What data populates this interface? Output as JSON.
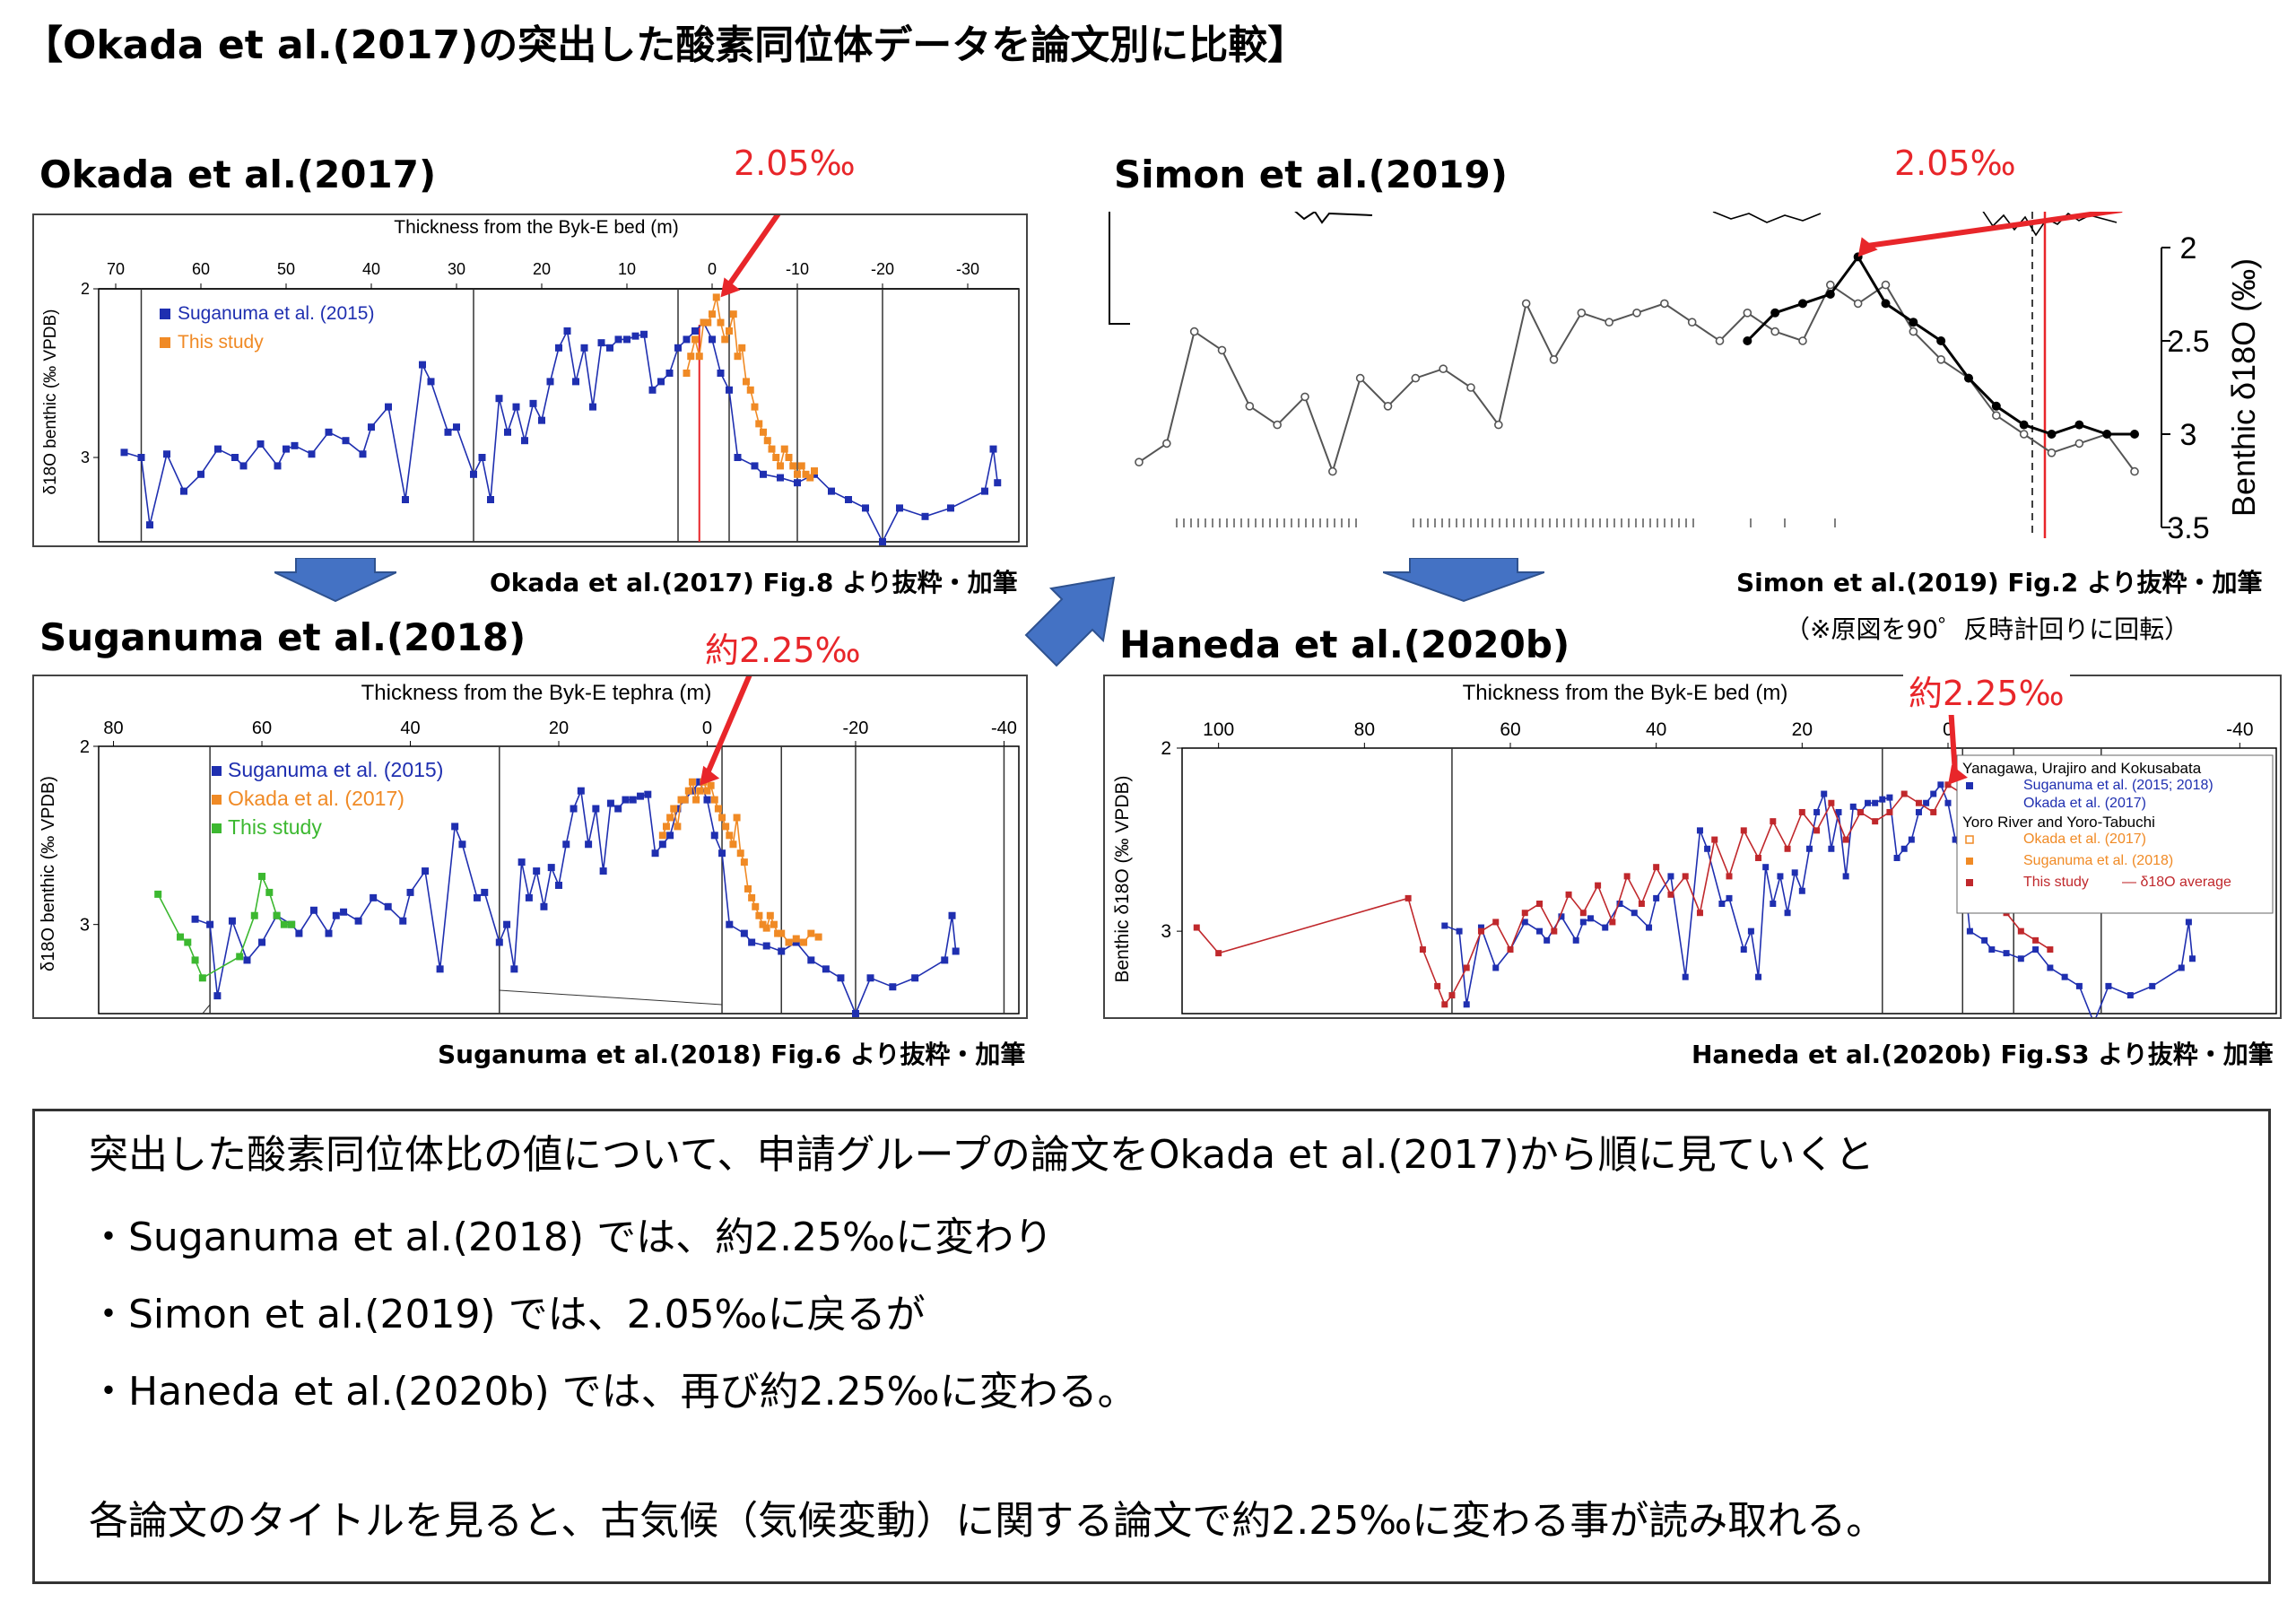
{
  "page": {
    "title": "【Okada et al.(2017)の突出した酸素同位体データを論文別に比較】"
  },
  "panels": [
    {
      "id": "okada2017",
      "heading": "Okada et al.(2017)",
      "caption": "Okada et al.(2017) Fig.8 より抜粋・加筆",
      "highlight": "2.05‰",
      "xlabel": "Thickness from the Byk-E bed (m)",
      "ylabel": "δ18O benthic (‰ VPDB)",
      "legend": [
        "Suganuma et al. (2015)",
        "This study"
      ]
    },
    {
      "id": "suganuma2018",
      "heading": "Suganuma et al.(2018)",
      "caption": "Suganuma et al.(2018) Fig.6 より抜粋・加筆",
      "highlight": "約2.25‰",
      "xlabel": "Thickness from the Byk-E tephra (m)",
      "ylabel": "δ18O benthic (‰ VPDB)",
      "legend": [
        "Suganuma et al. (2015)",
        "Okada et al. (2017)",
        "This study"
      ]
    },
    {
      "id": "simon2019",
      "heading": "Simon et al.(2019)",
      "caption": "Simon et al.(2019) Fig.2 より抜粋・加筆",
      "caption2": "（※原図を90゜反時計回りに回転）",
      "highlight": "2.05‰",
      "ylabel": "Benthic δ18O (‰)"
    },
    {
      "id": "haneda2020b",
      "heading": "Haneda et al.(2020b)",
      "caption": "Haneda et al.(2020b) Fig.S3 より抜粋・加筆",
      "highlight": "約2.25‰",
      "xlabel": "Thickness from the Byk-E bed (m)",
      "ylabel": "Benthic δ18O (‰ VPDB)",
      "legend_group1": "Yanagawa, Urajiro and Kokusabata",
      "legend_group1_items": [
        "Suganuma et al. (2015; 2018)",
        "Okada et al. (2017)"
      ],
      "legend_group2": "Yoro River and Yoro-Tabuchi",
      "legend_group2_items": [
        "Okada et al. (2017)",
        "Suganuma et al. (2018)",
        "This study"
      ],
      "legend_avg": "— δ18O average"
    }
  ],
  "chart_data": [
    {
      "type": "line",
      "panel": "okada2017",
      "xlabel": "Thickness from the Byk-E bed (m)",
      "ylabel": "δ18O benthic (‰ VPDB)",
      "xlim": [
        72,
        -36
      ],
      "ylim": [
        2,
        3.5
      ],
      "xticks": [
        70,
        60,
        50,
        40,
        30,
        20,
        10,
        0,
        -10,
        -20,
        -30
      ],
      "yticks": [
        2,
        3
      ],
      "series": [
        {
          "name": "Suganuma et al. (2015)",
          "color": "#1f2fb0",
          "x": [
            69,
            67,
            66,
            64,
            62,
            60,
            58,
            56,
            55,
            53,
            51,
            50,
            49,
            47,
            45,
            43,
            41,
            40,
            38,
            36,
            34,
            33,
            31,
            30,
            28,
            27,
            26,
            25,
            24,
            23,
            22,
            21,
            20,
            19,
            18,
            17,
            16,
            15,
            14,
            13,
            12,
            11,
            10,
            9,
            8,
            7,
            6,
            5,
            4,
            3,
            2,
            1,
            0,
            -1,
            -2,
            -3,
            -5,
            -6,
            -8,
            -10,
            -12,
            -14,
            -16,
            -18,
            -20,
            -22,
            -25,
            -28,
            -32,
            -33,
            -33.5
          ],
          "y": [
            2.97,
            3.0,
            3.4,
            2.98,
            3.2,
            3.1,
            2.95,
            3.0,
            3.05,
            2.92,
            3.05,
            2.95,
            2.93,
            2.98,
            2.85,
            2.9,
            2.98,
            2.82,
            2.7,
            3.25,
            2.45,
            2.55,
            2.85,
            2.82,
            3.1,
            3.0,
            3.25,
            2.65,
            2.85,
            2.7,
            2.9,
            2.68,
            2.78,
            2.55,
            2.35,
            2.25,
            2.55,
            2.35,
            2.7,
            2.32,
            2.35,
            2.3,
            2.3,
            2.28,
            2.27,
            2.6,
            2.55,
            2.5,
            2.35,
            2.3,
            2.25,
            2.2,
            2.3,
            2.5,
            2.6,
            3.0,
            3.05,
            3.1,
            3.12,
            3.15,
            3.1,
            3.2,
            3.25,
            3.3,
            3.5,
            3.3,
            3.35,
            3.3,
            3.2,
            2.95,
            3.15
          ]
        },
        {
          "name": "This study",
          "color": "#f08a25",
          "x": [
            3,
            2.5,
            2,
            1.5,
            1,
            0.5,
            0,
            -0.5,
            -1,
            -1.5,
            -2,
            -2.5,
            -3,
            -3.5,
            -4,
            -4.5,
            -5,
            -5.5,
            -6,
            -6.5,
            -7,
            -7.5,
            -8,
            -8.5,
            -9,
            -9.5,
            -10,
            -10.5,
            -11,
            -11.5,
            -12
          ],
          "y": [
            2.5,
            2.4,
            2.3,
            2.4,
            2.2,
            2.2,
            2.15,
            2.05,
            2.2,
            2.3,
            2.25,
            2.15,
            2.4,
            2.35,
            2.55,
            2.6,
            2.7,
            2.8,
            2.85,
            2.9,
            2.95,
            3.0,
            3.05,
            2.95,
            3.0,
            3.05,
            3.1,
            3.05,
            3.1,
            3.12,
            3.08
          ]
        }
      ],
      "annotation": "2.05‰"
    },
    {
      "type": "line",
      "panel": "suganuma2018",
      "xlabel": "Thickness from the Byk-E tephra (m)",
      "ylabel": "δ18O benthic (‰ VPDB)",
      "xlim": [
        82,
        -42
      ],
      "ylim": [
        2,
        3.5
      ],
      "xticks": [
        80,
        60,
        40,
        20,
        0,
        -20,
        -40
      ],
      "yticks": [
        2,
        3
      ],
      "series": [
        {
          "name": "Suganuma et al. (2015)",
          "color": "#1f2fb0",
          "x": [
            69,
            67,
            66,
            64,
            62,
            60,
            58,
            56,
            55,
            53,
            51,
            50,
            49,
            47,
            45,
            43,
            41,
            40,
            38,
            36,
            34,
            33,
            31,
            30,
            28,
            27,
            26,
            25,
            24,
            23,
            22,
            21,
            20,
            19,
            18,
            17,
            16,
            15,
            14,
            13,
            12,
            11,
            10,
            9,
            8,
            7,
            6,
            5,
            4,
            3,
            2,
            1,
            0,
            -1,
            -2,
            -3,
            -5,
            -6,
            -8,
            -10,
            -12,
            -14,
            -16,
            -18,
            -20,
            -22,
            -25,
            -28,
            -32,
            -33,
            -33.5
          ],
          "y": [
            2.97,
            3.0,
            3.4,
            2.98,
            3.2,
            3.1,
            2.95,
            3.0,
            3.05,
            2.92,
            3.05,
            2.95,
            2.93,
            2.98,
            2.85,
            2.9,
            2.98,
            2.82,
            2.7,
            3.25,
            2.45,
            2.55,
            2.85,
            2.82,
            3.1,
            3.0,
            3.25,
            2.65,
            2.85,
            2.7,
            2.9,
            2.68,
            2.78,
            2.55,
            2.35,
            2.25,
            2.55,
            2.35,
            2.7,
            2.32,
            2.35,
            2.3,
            2.3,
            2.28,
            2.27,
            2.6,
            2.55,
            2.5,
            2.35,
            2.3,
            2.25,
            2.2,
            2.3,
            2.5,
            2.6,
            3.0,
            3.05,
            3.1,
            3.12,
            3.15,
            3.1,
            3.2,
            3.25,
            3.3,
            3.5,
            3.3,
            3.35,
            3.3,
            3.2,
            2.95,
            3.15
          ]
        },
        {
          "name": "Okada et al. (2017)",
          "color": "#f08a25",
          "x": [
            6,
            5.5,
            5,
            4.5,
            4,
            3.5,
            3,
            2.5,
            2,
            1.5,
            1,
            0.5,
            0,
            -0.5,
            -1,
            -1.5,
            -2,
            -2.5,
            -3,
            -3.5,
            -4,
            -4.5,
            -5,
            -5.5,
            -6,
            -6.5,
            -7,
            -7.5,
            -8,
            -8.5,
            -9,
            -9.5,
            -10,
            -11,
            -12,
            -13,
            -14,
            -15
          ],
          "y": [
            2.5,
            2.45,
            2.4,
            2.35,
            2.45,
            2.3,
            2.3,
            2.25,
            2.2,
            2.3,
            2.25,
            2.2,
            2.25,
            2.22,
            2.3,
            2.35,
            2.4,
            2.45,
            2.5,
            2.55,
            2.4,
            2.6,
            2.65,
            2.8,
            2.85,
            2.9,
            2.95,
            3.0,
            3.02,
            2.95,
            3.0,
            3.05,
            3.05,
            3.1,
            3.08,
            3.1,
            3.05,
            3.07
          ]
        },
        {
          "name": "This study",
          "color": "#3cb830",
          "x": [
            74,
            71,
            70,
            69,
            68,
            63,
            61,
            60,
            59,
            58,
            57,
            56
          ],
          "y": [
            2.83,
            3.07,
            3.1,
            3.2,
            3.3,
            3.18,
            2.95,
            2.73,
            2.82,
            2.95,
            3.0,
            3.0
          ]
        }
      ],
      "annotation": "約2.25‰"
    },
    {
      "type": "line",
      "panel": "simon2019",
      "ylabel": "Benthic δ18O (‰)",
      "ylim": [
        3.5,
        2
      ],
      "yticks": [
        2,
        2.5,
        3,
        3.5
      ],
      "series": [
        {
          "name": "Open circles",
          "color": "#555555",
          "x": [
            0,
            1,
            2,
            3,
            4,
            5,
            6,
            7,
            8,
            9,
            10,
            11,
            12,
            13,
            14,
            15,
            16,
            17,
            18,
            19,
            20,
            21,
            22,
            23,
            24,
            25,
            26,
            27,
            28,
            29,
            30,
            31,
            32,
            33,
            34,
            35,
            36
          ],
          "y": [
            3.15,
            3.05,
            2.45,
            2.55,
            2.85,
            2.95,
            2.8,
            3.2,
            2.7,
            2.85,
            2.7,
            2.65,
            2.75,
            2.95,
            2.3,
            2.6,
            2.35,
            2.4,
            2.35,
            2.3,
            2.4,
            2.5,
            2.35,
            2.45,
            2.5,
            2.2,
            2.3,
            2.2,
            2.45,
            2.6,
            2.7,
            2.9,
            3.0,
            3.1,
            3.05,
            3.0,
            3.2
          ]
        },
        {
          "name": "Filled circles",
          "color": "#000000",
          "x": [
            22,
            23,
            24,
            25,
            26,
            27,
            28,
            29,
            30,
            31,
            32,
            33,
            34,
            35,
            36
          ],
          "y": [
            2.5,
            2.35,
            2.3,
            2.25,
            2.05,
            2.3,
            2.4,
            2.5,
            2.7,
            2.85,
            2.95,
            3.0,
            2.95,
            3.0,
            3.0
          ]
        }
      ],
      "annotation": "2.05‰"
    },
    {
      "type": "line",
      "panel": "haneda2020b",
      "xlabel": "Thickness from the Byk-E bed (m)",
      "ylabel": "Benthic δ18O (‰ VPDB)",
      "xlim": [
        105,
        -45
      ],
      "ylim": [
        2,
        3.45
      ],
      "xticks": [
        100,
        80,
        60,
        40,
        20,
        0,
        -40
      ],
      "yticks": [
        2,
        3
      ],
      "series": [
        {
          "name": "Suganuma et al. (2015; 2018)",
          "color": "#1f2fb0",
          "x": [
            69,
            67,
            66,
            64,
            62,
            60,
            58,
            56,
            55,
            53,
            51,
            50,
            49,
            47,
            45,
            43,
            41,
            40,
            38,
            36,
            34,
            33,
            31,
            30,
            28,
            27,
            26,
            25,
            24,
            23,
            22,
            21,
            20,
            19,
            18,
            17,
            16,
            15,
            14,
            13,
            12,
            11,
            10,
            9,
            8,
            7,
            6,
            5,
            4,
            3,
            2,
            1,
            0,
            -1,
            -2,
            -3,
            -5,
            -6,
            -8,
            -10,
            -12,
            -14,
            -16,
            -18,
            -20,
            -22,
            -25,
            -28,
            -32,
            -33,
            -33.5
          ],
          "y": [
            2.97,
            3.0,
            3.4,
            2.98,
            3.2,
            3.1,
            2.95,
            3.0,
            3.05,
            2.92,
            3.05,
            2.95,
            2.93,
            2.98,
            2.85,
            2.9,
            2.98,
            2.82,
            2.7,
            3.25,
            2.45,
            2.55,
            2.85,
            2.82,
            3.1,
            3.0,
            3.25,
            2.65,
            2.85,
            2.7,
            2.9,
            2.68,
            2.78,
            2.55,
            2.35,
            2.25,
            2.55,
            2.35,
            2.7,
            2.32,
            2.35,
            2.3,
            2.3,
            2.28,
            2.27,
            2.6,
            2.55,
            2.5,
            2.35,
            2.3,
            2.25,
            2.2,
            2.3,
            2.5,
            2.6,
            3.0,
            3.05,
            3.1,
            3.12,
            3.15,
            3.1,
            3.2,
            3.25,
            3.3,
            3.5,
            3.3,
            3.35,
            3.3,
            3.2,
            2.95,
            3.15
          ]
        },
        {
          "name": "This study",
          "color": "#c0282c",
          "x": [
            103,
            100,
            74,
            72,
            70,
            69,
            68,
            66,
            64,
            62,
            60,
            58,
            56,
            54,
            52,
            50,
            48,
            46,
            44,
            42,
            40,
            38,
            36,
            34,
            32,
            30,
            28,
            26,
            24,
            22,
            20,
            18,
            16,
            14,
            12,
            10,
            8,
            6,
            4,
            2,
            0,
            -2,
            -4,
            -6,
            -8,
            -10,
            -12,
            -14
          ],
          "y": [
            2.98,
            3.12,
            2.82,
            3.1,
            3.3,
            3.4,
            3.35,
            3.2,
            3.0,
            2.95,
            3.1,
            2.9,
            2.85,
            3.0,
            2.8,
            2.9,
            2.75,
            2.95,
            2.7,
            2.85,
            2.65,
            2.8,
            2.7,
            2.9,
            2.5,
            2.7,
            2.45,
            2.6,
            2.4,
            2.55,
            2.35,
            2.45,
            2.3,
            2.5,
            2.35,
            2.4,
            2.35,
            2.25,
            2.3,
            2.35,
            2.2,
            2.25,
            2.4,
            2.7,
            2.9,
            3.0,
            3.05,
            3.1
          ]
        }
      ],
      "annotation": "約2.25‰"
    }
  ],
  "summary": {
    "intro": "突出した酸素同位体比の値について、申請グループの論文をOkada et al.(2017)から順に見ていくと",
    "bullets": [
      "・Suganuma et al.(2018) では、約2.25‰に変わり",
      "・Simon et al.(2019) では、2.05‰に戻るが",
      "・Haneda et al.(2020b) では、再び約2.25‰に変わる。"
    ],
    "conclusion": "各論文のタイトルを見ると、古気候（気候変動）に関する論文で約2.25‰に変わる事が読み取れる。"
  }
}
